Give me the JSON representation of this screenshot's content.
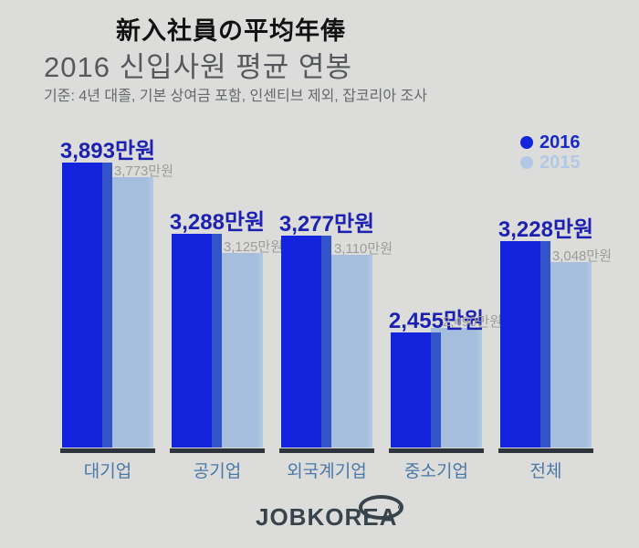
{
  "header": {
    "jp_title": "新入社員の平均年俸",
    "kr_title": "2016 신입사원 평균 연봉",
    "subtitle": "기준: 4년 대졸, 기본 상여금 포함, 인센티브 제외, 잡코리아 조사"
  },
  "legend": {
    "items": [
      {
        "label": "2016",
        "dot_color": "#1424dc",
        "text_color": "#1a28c8"
      },
      {
        "label": "2015",
        "dot_color": "#b3c8e4",
        "text_color": "#b3c8e4"
      }
    ],
    "position": "top-right"
  },
  "chart_data": {
    "type": "bar",
    "title": "2016 신입사원 평균 연봉",
    "subtitle": "기준: 4년 대졸, 기본 상여금 포함, 인센티브 제외, 잡코리아 조사",
    "categories": [
      "대기업",
      "공기업",
      "외국계기업",
      "중소기업",
      "전체"
    ],
    "series": [
      {
        "name": "2016",
        "color": "#1424dc",
        "values": [
          3893,
          3288,
          3277,
          2455,
          3228
        ]
      },
      {
        "name": "2015",
        "color": "#a5bedd",
        "values": [
          3773,
          3125,
          3110,
          2490,
          3048
        ]
      }
    ],
    "unit_suffix": "만원",
    "value_labels_2016": [
      "3,893만원",
      "3,288만원",
      "3,277만원",
      "2,455만원",
      "3,228만원"
    ],
    "value_labels_2015": [
      "3,773만원",
      "3,125만원",
      "3,110만원",
      "2,490만원",
      "3,048만원"
    ],
    "xlabel": "",
    "ylabel": "",
    "value_axis_visible": false,
    "grid": false,
    "legend_position": "top-right"
  },
  "footer": {
    "logo_text": "JOBKOREA",
    "logo_mark": "°"
  },
  "colors": {
    "background": "#dcddda",
    "bar_2016": "#1424dc",
    "bar_overlap": "#3353c8",
    "bar_2015": "#a5bedd",
    "bar_2015_edge": "#b3c9e3",
    "value_label_2016": "#1c21b2",
    "value_label_2015": "#9b9b99",
    "category_label": "#4a78a8",
    "baseline": "#2d343b",
    "logo": "#39434c"
  }
}
